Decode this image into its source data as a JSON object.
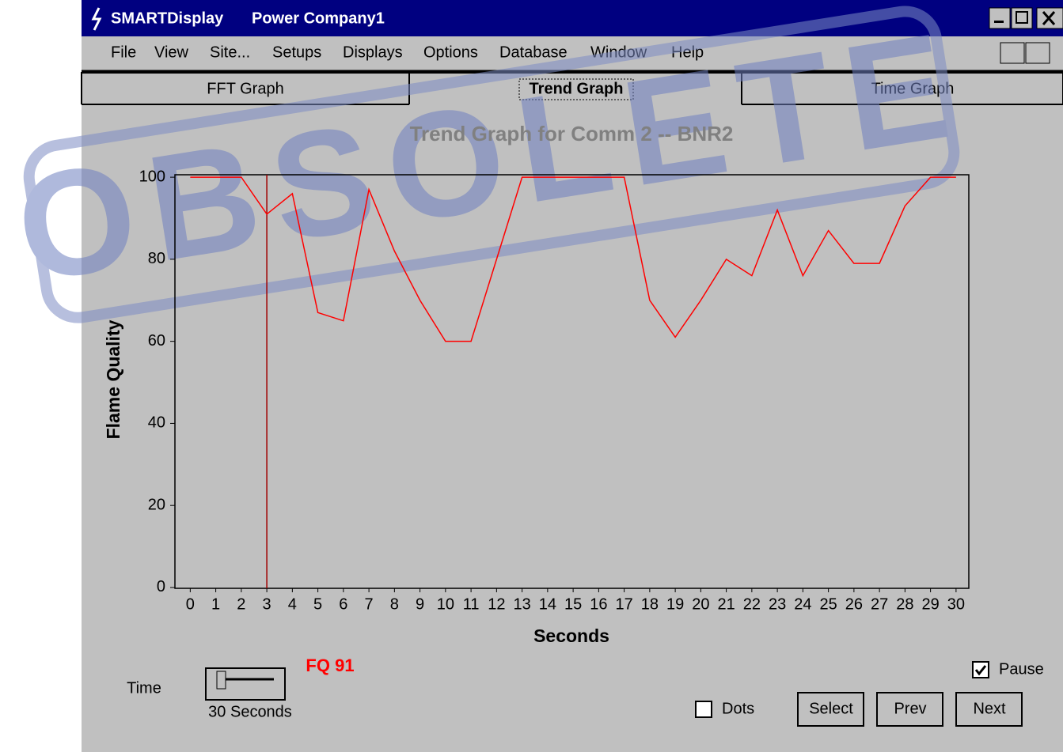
{
  "window": {
    "app": "SMARTDisplay",
    "document": "Power Company1"
  },
  "menu": [
    "File",
    "View",
    "Site...",
    "Setups",
    "Displays",
    "Options",
    "Database",
    "Window",
    "Help"
  ],
  "tabs": [
    "FFT Graph",
    "Trend Graph",
    "Time Graph"
  ],
  "active_tab": 1,
  "watermark": "OBSOLETE",
  "chart_data": {
    "type": "line",
    "title": "Trend Graph for Comm 2 -- BNR2",
    "x_label": "Seconds",
    "y_label": "Flame Quality",
    "x": [
      0,
      1,
      2,
      3,
      4,
      5,
      6,
      7,
      8,
      9,
      10,
      11,
      12,
      13,
      14,
      15,
      16,
      17,
      18,
      19,
      20,
      21,
      22,
      23,
      24,
      25,
      26,
      27,
      28,
      29,
      30
    ],
    "series": [
      {
        "name": "Flame Quality",
        "color": "#ff0000",
        "values": [
          100,
          100,
          100,
          91,
          96,
          67,
          65,
          97,
          82,
          70,
          60,
          60,
          80,
          100,
          100,
          100,
          100,
          100,
          70,
          61,
          70,
          80,
          76,
          92,
          76,
          87,
          79,
          79,
          93,
          100,
          100
        ]
      }
    ],
    "xlim": [
      -0.6,
      30.5
    ],
    "ylim": [
      -0.2,
      100.6
    ],
    "xticks": [
      0,
      1,
      2,
      3,
      4,
      5,
      6,
      7,
      8,
      9,
      10,
      11,
      12,
      13,
      14,
      15,
      16,
      17,
      18,
      19,
      20,
      21,
      22,
      23,
      24,
      25,
      26,
      27,
      28,
      29,
      30
    ],
    "yticks": [
      0,
      20,
      40,
      60,
      80,
      100
    ],
    "cursor_x": 3,
    "cursor_color": "#a00000",
    "cursor_label": "FQ 91"
  },
  "controls": {
    "time_label": "Time",
    "time_value": "30 Seconds",
    "pause": {
      "label": "Pause",
      "checked": true
    },
    "dots": {
      "label": "Dots",
      "checked": false
    },
    "buttons": [
      "Select",
      "Prev",
      "Next"
    ]
  }
}
